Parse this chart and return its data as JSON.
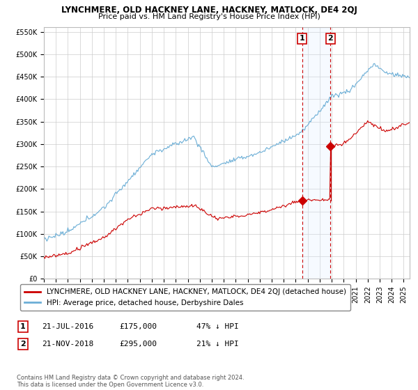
{
  "title": "LYNCHMERE, OLD HACKNEY LANE, HACKNEY, MATLOCK, DE4 2QJ",
  "subtitle": "Price paid vs. HM Land Registry's House Price Index (HPI)",
  "ylabel_ticks": [
    "£0",
    "£50K",
    "£100K",
    "£150K",
    "£200K",
    "£250K",
    "£300K",
    "£350K",
    "£400K",
    "£450K",
    "£500K",
    "£550K"
  ],
  "ytick_values": [
    0,
    50000,
    100000,
    150000,
    200000,
    250000,
    300000,
    350000,
    400000,
    450000,
    500000,
    550000
  ],
  "xmin": 1995.0,
  "xmax": 2025.5,
  "ymin": 0,
  "ymax": 560000,
  "sale1_date": 2016.54,
  "sale1_price": 175000,
  "sale2_date": 2018.9,
  "sale2_price": 295000,
  "hpi_line_color": "#6baed6",
  "sold_line_color": "#cc0000",
  "vline_color": "#cc0000",
  "shade_color": "#ddeeff",
  "grid_color": "#cccccc",
  "background_color": "#ffffff",
  "legend_label_sold": "LYNCHMERE, OLD HACKNEY LANE, HACKNEY, MATLOCK, DE4 2QJ (detached house)",
  "legend_label_hpi": "HPI: Average price, detached house, Derbyshire Dales",
  "footer": "Contains HM Land Registry data © Crown copyright and database right 2024.\nThis data is licensed under the Open Government Licence v3.0.",
  "title_fontsize": 8.5,
  "subtitle_fontsize": 8,
  "tick_fontsize": 7,
  "legend_fontsize": 7.5,
  "annotation_fontsize": 8
}
